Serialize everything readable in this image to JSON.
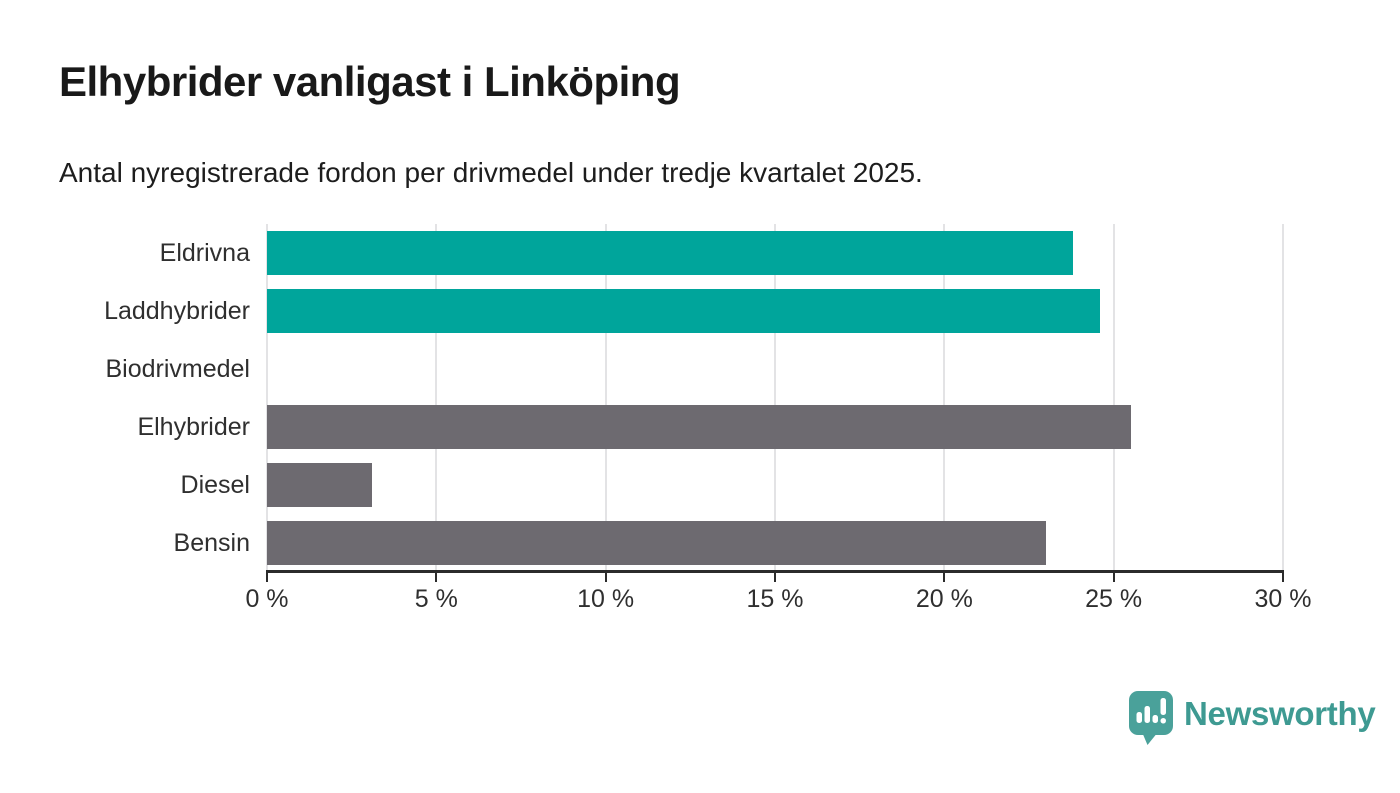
{
  "title": "Elhybrider vanligast i Linköping",
  "subtitle": "Antal nyregistrerade fordon per drivmedel under tredje kvartalet 2025.",
  "colors": {
    "teal_bar": "#00a59b",
    "gray_bar": "#6d6a70",
    "gridline": "#e3e3e5",
    "axis": "#2b2b2b",
    "title_text": "#191919",
    "label_text": "#2f2f2f",
    "logo_icon": "#4aa19a",
    "logo_text": "#3e9a92"
  },
  "chart_data": {
    "type": "bar",
    "orientation": "horizontal",
    "title": "Elhybrider vanligast i Linköping",
    "subtitle": "Antal nyregistrerade fordon per drivmedel under tredje kvartalet 2025.",
    "categories": [
      "Eldrivna",
      "Laddhybrider",
      "Biodrivmedel",
      "Elhybrider",
      "Diesel",
      "Bensin"
    ],
    "values": [
      23.8,
      24.6,
      0,
      25.5,
      3.1,
      23.0
    ],
    "bar_colors": [
      "#00a59b",
      "#00a59b",
      "#00a59b",
      "#6d6a70",
      "#6d6a70",
      "#6d6a70"
    ],
    "unit": "%",
    "xlabel": "",
    "ylabel": "",
    "xlim": [
      0,
      30
    ],
    "xticks": [
      0,
      5,
      10,
      15,
      20,
      25,
      30
    ],
    "xtick_labels": [
      "0 %",
      "5 %",
      "10 %",
      "15 %",
      "20 %",
      "25 %",
      "30 %"
    ],
    "grid": true,
    "legend": false
  },
  "logo": {
    "text": "Newsworthy",
    "icon": "newsworthy-speech-bubble-chart-icon"
  }
}
